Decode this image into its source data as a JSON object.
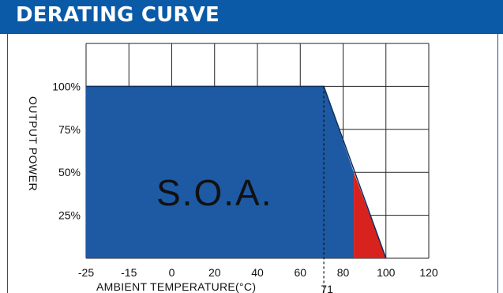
{
  "header": {
    "title": "DERATING CURVE"
  },
  "colors": {
    "header_bg": "#0a5aa8",
    "soa_fill": "#1d5aa3",
    "red_fill": "#d8221d",
    "grid": "#222222"
  },
  "chart_data": {
    "type": "area",
    "xlabel": "AMBIENT TEMPERATURE(°C)",
    "ylabel": "OUTPUT POWER",
    "xlim": [
      -25,
      120
    ],
    "ylim": [
      0,
      125
    ],
    "x_ticks": [
      -25,
      -15,
      0,
      20,
      40,
      60,
      80,
      100,
      120
    ],
    "y_ticks": [
      25,
      50,
      75,
      100
    ],
    "y_tick_labels": [
      "25%",
      "50%",
      "75%",
      "100%"
    ],
    "grid": true,
    "series": [
      {
        "values_x": [
          -25,
          71,
          100
        ],
        "values_y": [
          100,
          100,
          0
        ]
      }
    ],
    "soa_region": {
      "x": [
        -25,
        71,
        85,
        85,
        -25
      ],
      "y": [
        100,
        100,
        50,
        0,
        0
      ]
    },
    "red_region": {
      "x": [
        85,
        100,
        85
      ],
      "y": [
        50,
        0,
        0
      ]
    },
    "annotations": [
      {
        "text": "S.O.A.",
        "x": 20,
        "y": 40
      },
      {
        "text": "71",
        "x": 71,
        "y": -16,
        "dashed_vertical_at": 71
      }
    ]
  }
}
